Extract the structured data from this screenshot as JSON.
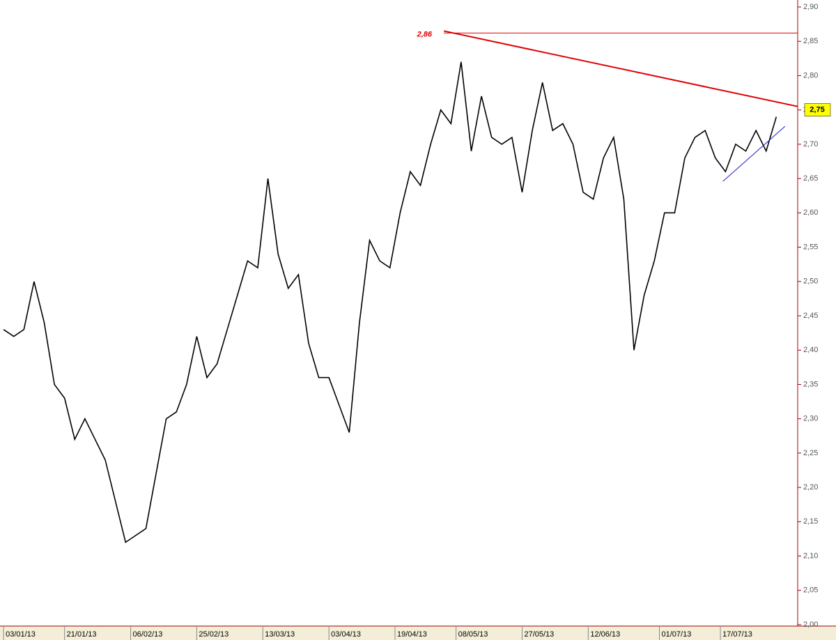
{
  "chart_data": {
    "type": "line",
    "x": [
      0,
      2,
      4,
      6,
      8,
      10,
      12,
      14,
      16,
      18,
      20,
      22,
      24,
      26,
      28,
      30,
      32,
      34,
      36,
      38,
      40,
      42,
      44,
      46,
      48,
      50,
      52,
      54,
      56,
      58,
      60,
      62,
      64,
      66,
      68,
      70,
      72,
      74,
      76,
      78,
      80,
      82,
      84,
      86,
      88,
      90,
      92,
      94,
      96,
      98,
      100,
      102,
      104,
      106,
      108,
      110,
      112,
      114,
      116,
      118,
      120,
      122,
      124,
      126,
      128,
      130,
      132,
      134,
      136,
      138,
      140,
      142,
      144,
      146,
      148,
      150,
      152
    ],
    "series": [
      {
        "color": "#000000",
        "values": [
          2.43,
          2.42,
          2.43,
          2.5,
          2.44,
          2.35,
          2.33,
          2.27,
          2.3,
          2.27,
          2.24,
          2.18,
          2.12,
          2.13,
          2.14,
          2.22,
          2.3,
          2.31,
          2.35,
          2.42,
          2.36,
          2.38,
          2.43,
          2.48,
          2.53,
          2.52,
          2.65,
          2.54,
          2.49,
          2.51,
          2.41,
          2.36,
          2.36,
          2.32,
          2.28,
          2.44,
          2.56,
          2.53,
          2.52,
          2.6,
          2.66,
          2.64,
          2.7,
          2.75,
          2.73,
          2.82,
          2.69,
          2.77,
          2.71,
          2.7,
          2.71,
          2.63,
          2.72,
          2.79,
          2.72,
          2.73,
          2.7,
          2.63,
          2.62,
          2.68,
          2.71,
          2.62,
          2.4,
          2.48,
          2.53,
          2.6,
          2.6,
          2.68,
          2.71,
          2.72,
          2.68,
          2.66,
          2.7,
          2.69,
          2.72,
          2.69,
          2.74
        ]
      }
    ],
    "xlim": [
      -0.7,
      156.2
    ],
    "xticks": [
      {
        "value": 0,
        "label": "03/01/13"
      },
      {
        "value": 12,
        "label": "21/01/13"
      },
      {
        "value": 25,
        "label": "06/02/13"
      },
      {
        "value": 38,
        "label": "25/02/13"
      },
      {
        "value": 51,
        "label": "13/03/13"
      },
      {
        "value": 64,
        "label": "03/04/13"
      },
      {
        "value": 77,
        "label": "19/04/13"
      },
      {
        "value": 89,
        "label": "08/05/13"
      },
      {
        "value": 102,
        "label": "27/05/13"
      },
      {
        "value": 115,
        "label": "12/06/13"
      },
      {
        "value": 129,
        "label": "01/07/13"
      },
      {
        "value": 141,
        "label": "17/07/13"
      }
    ],
    "ylim": [
      2.0,
      2.9
    ],
    "yticks": [
      {
        "value": 2.0,
        "label": "2,00"
      },
      {
        "value": 2.05,
        "label": "2,05"
      },
      {
        "value": 2.1,
        "label": "2,10"
      },
      {
        "value": 2.15,
        "label": "2,15"
      },
      {
        "value": 2.2,
        "label": "2,20"
      },
      {
        "value": 2.25,
        "label": "2,25"
      },
      {
        "value": 2.3,
        "label": "2,30"
      },
      {
        "value": 2.35,
        "label": "2,35"
      },
      {
        "value": 2.4,
        "label": "2,40"
      },
      {
        "value": 2.45,
        "label": "2,45"
      },
      {
        "value": 2.5,
        "label": "2,50"
      },
      {
        "value": 2.55,
        "label": "2,55"
      },
      {
        "value": 2.6,
        "label": "2,60"
      },
      {
        "value": 2.65,
        "label": "2,65"
      },
      {
        "value": 2.7,
        "label": "2,70"
      },
      {
        "value": 2.75,
        "label": "2,75"
      },
      {
        "value": 2.8,
        "label": "2,80"
      },
      {
        "value": 2.85,
        "label": "2,85"
      },
      {
        "value": 2.9,
        "label": "2,90"
      }
    ],
    "trendlines": [
      {
        "color": "#e00000",
        "x": [
          86.6,
          156.2
        ],
        "y": [
          2.865,
          2.755
        ]
      },
      {
        "color": "#e00000",
        "x": [
          86.6,
          156.2
        ],
        "y": [
          2.862,
          2.862
        ]
      },
      {
        "color": "#1a1ac8",
        "x": [
          141.5,
          153.7
        ],
        "y": [
          2.646,
          2.726
        ]
      }
    ],
    "annotations": [
      {
        "text": "2,86",
        "value": 2.86,
        "color": "#e00000"
      },
      {
        "text": "2,75",
        "value": 2.75,
        "color": "#ffff00"
      }
    ]
  }
}
